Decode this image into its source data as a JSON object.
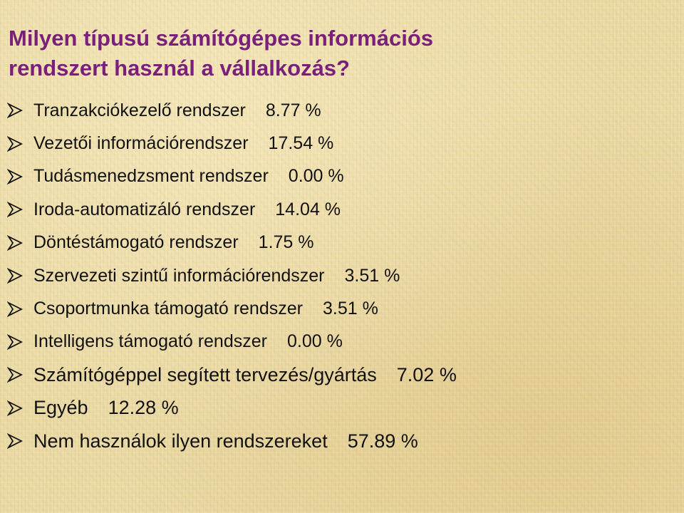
{
  "title": {
    "line1": "Milyen típusú számítógépes információs",
    "line2": "rendszert használ a vállalkozás?"
  },
  "bullet_icon": "arrowhead-bullet-icon",
  "items": [
    {
      "label": "Tranzakciókezelő rendszer",
      "value": "8.77 %"
    },
    {
      "label": "Vezetői információrendszer",
      "value": "17.54 %"
    },
    {
      "label": "Tudásmenedzsment rendszer",
      "value": "0.00 %"
    },
    {
      "label": "Iroda-automatizáló rendszer",
      "value": "14.04 %"
    },
    {
      "label": "Döntéstámogató rendszer",
      "value": "1.75 %"
    },
    {
      "label": "Szervezeti szintű információrendszer",
      "value": "3.51 %"
    },
    {
      "label": "Csoportmunka támogató rendszer",
      "value": "3.51 %"
    },
    {
      "label": "Intelligens támogató rendszer",
      "value": "0.00 %"
    },
    {
      "label": "Számítógéppel segített tervezés/gyártás",
      "value": "7.02 %"
    },
    {
      "label": "Egyéb",
      "value": "12.28 %"
    },
    {
      "label": "Nem használok ilyen rendszereket",
      "value": "57.89 %"
    }
  ],
  "colors": {
    "title": "#7a1f7a",
    "text": "#111111",
    "background": "#ead9a3"
  }
}
